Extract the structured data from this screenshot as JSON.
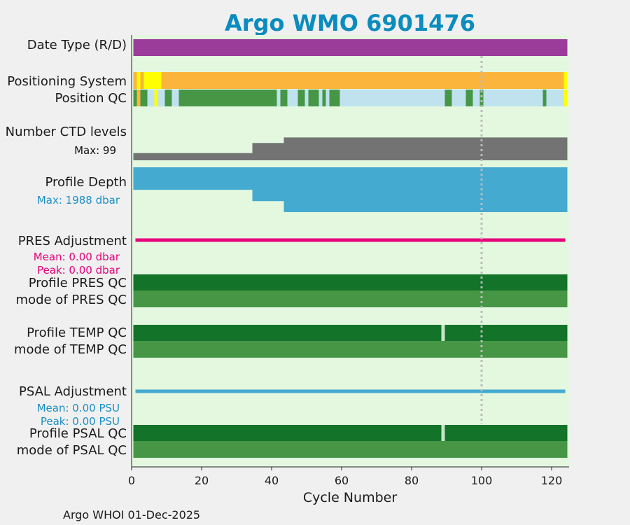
{
  "chart_data": {
    "type": "timeline",
    "title": "Argo WMO 6901476",
    "xlabel": "Cycle Number",
    "xlim": [
      0,
      125
    ],
    "xticks": [
      0,
      20,
      40,
      60,
      80,
      100,
      120
    ],
    "reference_line_x": 100,
    "grid": false,
    "footer": "Argo WHOI 01-Dec-2025",
    "rows": {
      "date_type": {
        "label": "Date Type (R/D)",
        "segments": [
          {
            "from": 0.5,
            "to": 124.5,
            "value": "D"
          }
        ]
      },
      "positioning_system": {
        "label": "Positioning System",
        "segments": [
          {
            "from": 0.5,
            "to": 1.5,
            "value": "orange"
          },
          {
            "from": 1.5,
            "to": 2.5,
            "value": "yellow"
          },
          {
            "from": 2.5,
            "to": 3.5,
            "value": "orange"
          },
          {
            "from": 3.5,
            "to": 8.5,
            "value": "yellow"
          },
          {
            "from": 8.5,
            "to": 123.5,
            "value": "orange"
          },
          {
            "from": 123.5,
            "to": 124.5,
            "value": "yellow"
          }
        ]
      },
      "position_qc": {
        "label": "Position QC",
        "segments": [
          {
            "from": 0.5,
            "to": 1.5,
            "value": "good"
          },
          {
            "from": 1.5,
            "to": 2.5,
            "value": "unknown"
          },
          {
            "from": 2.5,
            "to": 4.5,
            "value": "good"
          },
          {
            "from": 4.5,
            "to": 6.5,
            "value": "interp"
          },
          {
            "from": 6.5,
            "to": 7.5,
            "value": "yellow"
          },
          {
            "from": 7.5,
            "to": 9.5,
            "value": "interp"
          },
          {
            "from": 9.5,
            "to": 11.5,
            "value": "good"
          },
          {
            "from": 11.5,
            "to": 13.5,
            "value": "interp"
          },
          {
            "from": 13.5,
            "to": 41.5,
            "value": "good"
          },
          {
            "from": 41.5,
            "to": 42.5,
            "value": "interp"
          },
          {
            "from": 42.5,
            "to": 44.5,
            "value": "good"
          },
          {
            "from": 44.5,
            "to": 47.5,
            "value": "interp"
          },
          {
            "from": 47.5,
            "to": 49.5,
            "value": "good"
          },
          {
            "from": 49.5,
            "to": 50.5,
            "value": "interp"
          },
          {
            "from": 50.5,
            "to": 53.5,
            "value": "good"
          },
          {
            "from": 53.5,
            "to": 54.5,
            "value": "interp"
          },
          {
            "from": 54.5,
            "to": 55.5,
            "value": "good"
          },
          {
            "from": 55.5,
            "to": 56.5,
            "value": "interp"
          },
          {
            "from": 56.5,
            "to": 59.5,
            "value": "good"
          },
          {
            "from": 59.5,
            "to": 89.5,
            "value": "interp"
          },
          {
            "from": 89.5,
            "to": 91.5,
            "value": "good"
          },
          {
            "from": 91.5,
            "to": 95.5,
            "value": "interp"
          },
          {
            "from": 95.5,
            "to": 97.5,
            "value": "good"
          },
          {
            "from": 97.5,
            "to": 99.5,
            "value": "interp"
          },
          {
            "from": 99.5,
            "to": 100.5,
            "value": "good"
          },
          {
            "from": 100.5,
            "to": 117.5,
            "value": "interp"
          },
          {
            "from": 117.5,
            "to": 118.5,
            "value": "good"
          },
          {
            "from": 118.5,
            "to": 123.5,
            "value": "interp"
          },
          {
            "from": 123.5,
            "to": 124.5,
            "value": "yellow"
          }
        ]
      },
      "ctd_levels": {
        "label": "Number CTD levels",
        "max_text": "Max: 99",
        "max": 99,
        "steps": [
          {
            "from": 0.5,
            "to": 34.5,
            "value": 30
          },
          {
            "from": 34.5,
            "to": 43.5,
            "value": 72
          },
          {
            "from": 43.5,
            "to": 124.5,
            "value": 95
          }
        ]
      },
      "profile_depth": {
        "label": "Profile Depth",
        "max_text": "Max: 1988 dbar",
        "max": 1988,
        "steps": [
          {
            "from": 0.5,
            "to": 34.5,
            "value": 1000
          },
          {
            "from": 34.5,
            "to": 43.5,
            "value": 1500
          },
          {
            "from": 43.5,
            "to": 124.5,
            "value": 1988
          }
        ]
      },
      "pres_adjustment": {
        "label": "PRES Adjustment",
        "mean_text": "Mean: 0.00 dbar",
        "peak_text": "Peak: 0.00 dbar",
        "value": 0.0,
        "from": 0.5,
        "to": 124.5
      },
      "profile_pres_qc": {
        "label": "Profile PRES QC",
        "segments": [
          {
            "from": 0.5,
            "to": 124.5,
            "value": "A"
          }
        ]
      },
      "mode_pres_qc": {
        "label": "mode of PRES QC",
        "segments": [
          {
            "from": 0.5,
            "to": 124.5,
            "value": "1"
          }
        ]
      },
      "profile_temp_qc": {
        "label": "Profile TEMP QC",
        "segments": [
          {
            "from": 0.5,
            "to": 88.5,
            "value": "A"
          },
          {
            "from": 88.5,
            "to": 89.5,
            "value": "gap"
          },
          {
            "from": 89.5,
            "to": 124.5,
            "value": "A"
          }
        ]
      },
      "mode_temp_qc": {
        "label": "mode of TEMP QC",
        "segments": [
          {
            "from": 0.5,
            "to": 124.5,
            "value": "1"
          }
        ]
      },
      "psal_adjustment": {
        "label": "PSAL Adjustment",
        "mean_text": "Mean: 0.00 PSU",
        "peak_text": "Peak: 0.00 PSU",
        "value": 0.0,
        "from": 0.5,
        "to": 124.5
      },
      "profile_psal_qc": {
        "label": "Profile PSAL QC",
        "segments": [
          {
            "from": 0.5,
            "to": 88.5,
            "value": "A"
          },
          {
            "from": 88.5,
            "to": 89.5,
            "value": "gap"
          },
          {
            "from": 89.5,
            "to": 124.5,
            "value": "A"
          }
        ]
      },
      "mode_psal_qc": {
        "label": "mode of PSAL QC",
        "segments": [
          {
            "from": 0.5,
            "to": 124.5,
            "value": "1"
          }
        ]
      }
    },
    "colors": {
      "title": "#0a8cbf",
      "plot_background": "#e4f8e0",
      "page_background": "#f0f0f0",
      "D": "#9b3c9b",
      "orange": "#fbb43c",
      "yellow": "#ffff00",
      "good": "#469646",
      "interp": "#bfe2ee",
      "unknown": "#fbb43c",
      "ctd": "#737373",
      "depth": "#44aad0",
      "pres_adj": "#e6007a",
      "psal_adj": "#44aad0",
      "A": "#127329",
      "1": "#469646",
      "gap": "#c8e6c8",
      "ref_line": "#bbbbbb"
    }
  }
}
